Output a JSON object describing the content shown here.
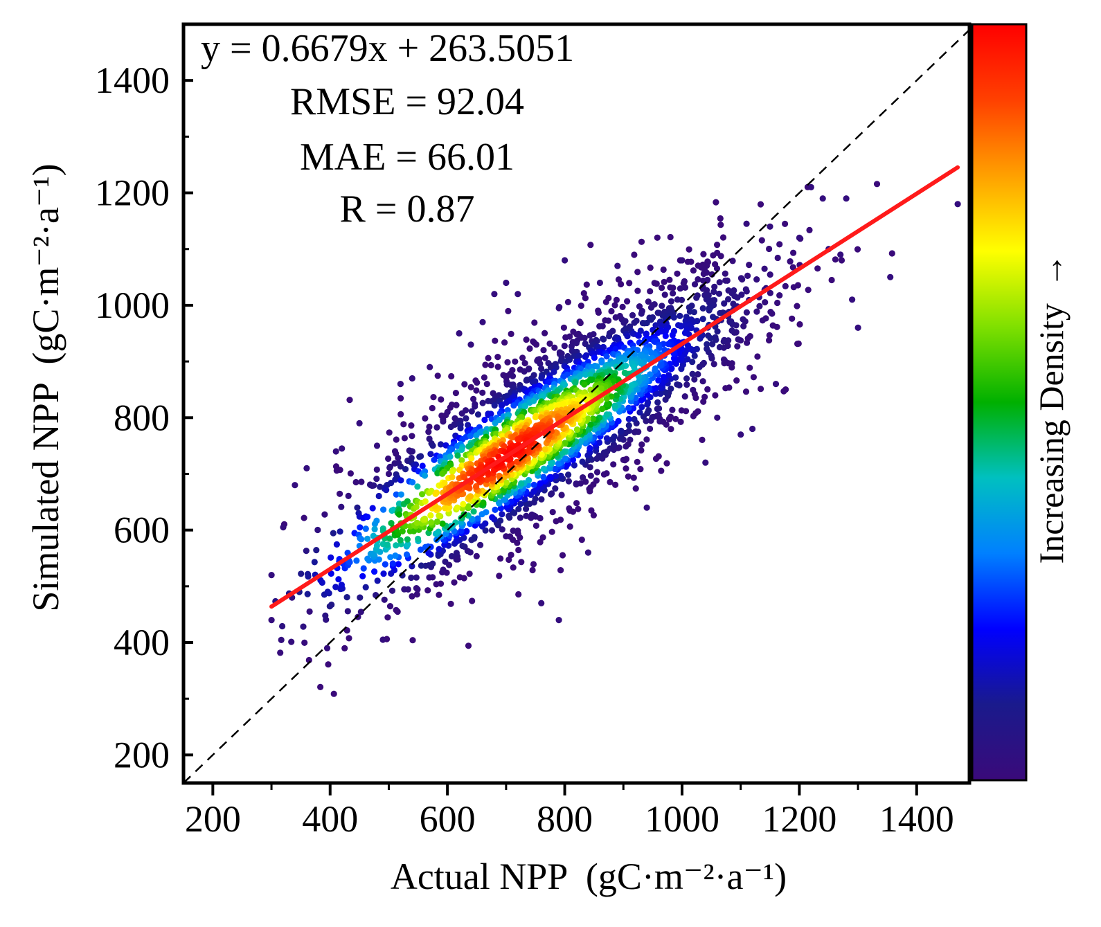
{
  "chart_data": {
    "type": "scatter",
    "title": "",
    "xlabel": "Actual NPP",
    "xlabel_unit": "(gC·m⁻²·a⁻¹)",
    "ylabel": "Simulated NPP",
    "ylabel_unit": "(gC·m⁻²·a⁻¹)",
    "xlim": [
      150,
      1490
    ],
    "ylim": [
      150,
      1500
    ],
    "x_ticks": [
      200,
      400,
      600,
      800,
      1000,
      1200,
      1400
    ],
    "y_ticks": [
      200,
      400,
      600,
      800,
      1000,
      1200,
      1400
    ],
    "x_tick_labels": [
      "200",
      "400",
      "600",
      "800",
      "1000",
      "1200",
      "1400"
    ],
    "y_tick_labels": [
      "200",
      "400",
      "600",
      "800",
      "1000",
      "1200",
      "1400"
    ],
    "fit_line": {
      "slope": 0.6679,
      "intercept": 263.5051,
      "x_range": [
        300,
        1470
      ],
      "color": "#ff1a1a"
    },
    "identity_line": {
      "style": "dashed",
      "color": "#000000"
    },
    "annotations": {
      "equation": "y = 0.6679x + 263.5051",
      "rmse": "RMSE = 92.04",
      "mae": "MAE = 66.01",
      "r": "R = 0.87"
    },
    "colorbar": {
      "label": "Increasing Density",
      "arrow": "→",
      "colors": [
        "#3a0a7a",
        "#1a1a8c",
        "#0000ff",
        "#0080ff",
        "#00c0c0",
        "#00b000",
        "#80e000",
        "#ffff00",
        "#ffa000",
        "#ff4000",
        "#ff0000"
      ]
    },
    "points_summary": {
      "count_approx": 2500,
      "center": [
        780,
        790
      ],
      "x_std": 175,
      "residual_std": 92,
      "x_range": [
        300,
        1470
      ]
    },
    "sample_points": [
      [
        300,
        520
      ],
      [
        300,
        440
      ],
      [
        320,
        605
      ],
      [
        335,
        480
      ],
      [
        340,
        680
      ],
      [
        360,
        710
      ],
      [
        365,
        455
      ],
      [
        395,
        390
      ],
      [
        410,
        740
      ],
      [
        420,
        745
      ],
      [
        450,
        790
      ],
      [
        480,
        750
      ],
      [
        490,
        405
      ],
      [
        500,
        700
      ],
      [
        520,
        860
      ],
      [
        540,
        870
      ],
      [
        570,
        890
      ],
      [
        600,
        810
      ],
      [
        620,
        950
      ],
      [
        640,
        930
      ],
      [
        660,
        970
      ],
      [
        680,
        1020
      ],
      [
        700,
        1040
      ],
      [
        720,
        1020
      ],
      [
        760,
        470
      ],
      [
        790,
        440
      ],
      [
        790,
        995
      ],
      [
        800,
        1080
      ],
      [
        840,
        560
      ],
      [
        860,
        1040
      ],
      [
        890,
        1070
      ],
      [
        940,
        640
      ],
      [
        950,
        1000
      ],
      [
        1000,
        1080
      ],
      [
        1040,
        720
      ],
      [
        1060,
        800
      ],
      [
        1100,
        770
      ],
      [
        1110,
        1145
      ],
      [
        1120,
        780
      ],
      [
        1150,
        1140
      ],
      [
        1160,
        860
      ],
      [
        1200,
        1120
      ],
      [
        1220,
        1210
      ],
      [
        1240,
        1190
      ],
      [
        1250,
        1100
      ],
      [
        1270,
        1090
      ],
      [
        1280,
        1190
      ],
      [
        1290,
        1010
      ],
      [
        1300,
        960
      ],
      [
        1355,
        1050
      ],
      [
        1470,
        1180
      ]
    ]
  }
}
